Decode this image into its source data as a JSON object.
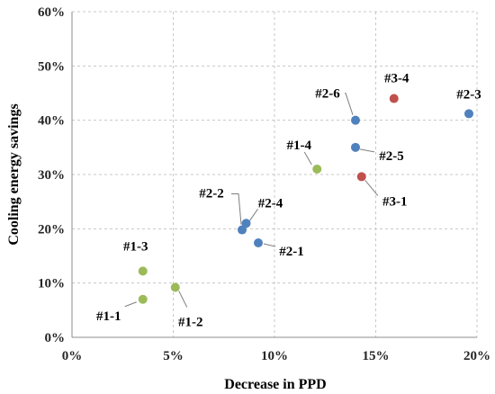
{
  "chart_data": {
    "type": "scatter",
    "xlabel": "Decrease in PPD",
    "ylabel": "Cooling energy savings",
    "xlim": [
      0,
      20
    ],
    "ylim": [
      0,
      60
    ],
    "x_ticks": [
      "0%",
      "5%",
      "10%",
      "15%",
      "20%"
    ],
    "y_ticks": [
      "0%",
      "10%",
      "20%",
      "30%",
      "40%",
      "50%",
      "60%"
    ],
    "grid": "dashed",
    "colors": {
      "group1": "#9bbb59",
      "group2": "#4f81bd",
      "group3": "#c0504d"
    },
    "points": [
      {
        "label": "#1-1",
        "x": 3.5,
        "y": 7.0,
        "group": "group1"
      },
      {
        "label": "#1-2",
        "x": 5.1,
        "y": 9.2,
        "group": "group1"
      },
      {
        "label": "#1-3",
        "x": 3.5,
        "y": 12.2,
        "group": "group1"
      },
      {
        "label": "#1-4",
        "x": 12.1,
        "y": 31.0,
        "group": "group1"
      },
      {
        "label": "#2-1",
        "x": 9.2,
        "y": 17.4,
        "group": "group2"
      },
      {
        "label": "#2-2",
        "x": 8.4,
        "y": 19.8,
        "group": "group2"
      },
      {
        "label": "#2-3",
        "x": 19.6,
        "y": 41.2,
        "group": "group2"
      },
      {
        "label": "#2-4",
        "x": 8.6,
        "y": 21.0,
        "group": "group2"
      },
      {
        "label": "#2-5",
        "x": 14.0,
        "y": 35.0,
        "group": "group2"
      },
      {
        "label": "#2-6",
        "x": 14.0,
        "y": 40.0,
        "group": "group2"
      },
      {
        "label": "#3-1",
        "x": 14.3,
        "y": 29.6,
        "group": "group3"
      },
      {
        "label": "#3-4",
        "x": 15.9,
        "y": 44.0,
        "group": "group3"
      }
    ]
  }
}
